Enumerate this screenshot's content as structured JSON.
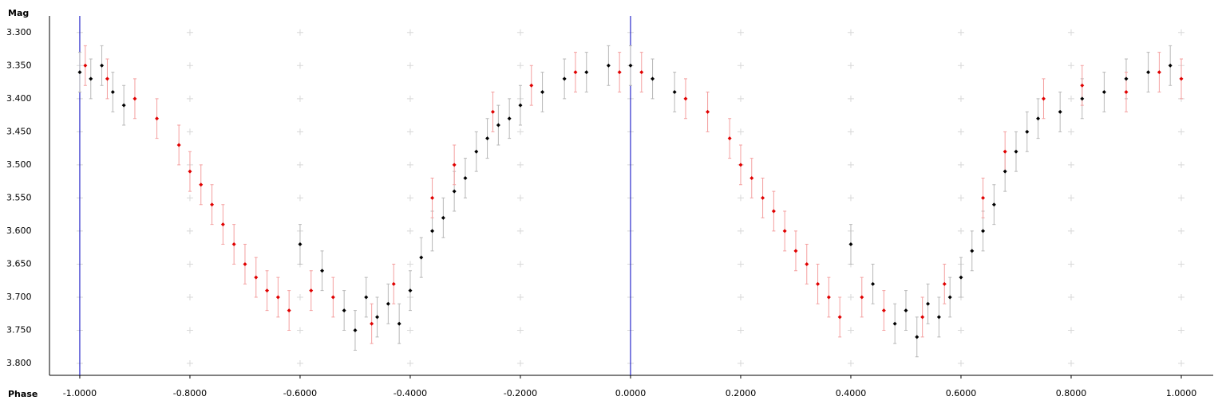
{
  "chart_data": {
    "type": "scatter",
    "y_label": "Mag",
    "x_label": "Phase",
    "xlim": [
      -1.055,
      1.058
    ],
    "ylim": [
      3.275,
      3.818
    ],
    "y_reversed": true,
    "xticks": [
      {
        "value": -1.0,
        "label": "-1.0000"
      },
      {
        "value": -0.8,
        "label": "-0.8000"
      },
      {
        "value": -0.6,
        "label": "-0.6000"
      },
      {
        "value": -0.4,
        "label": "-0.4000"
      },
      {
        "value": -0.2,
        "label": "-0.2000"
      },
      {
        "value": 0,
        "label": "0.0000"
      },
      {
        "value": 0.2,
        "label": "0.2000"
      },
      {
        "value": 0.4,
        "label": "0.4000"
      },
      {
        "value": 0.6,
        "label": "0.6000"
      },
      {
        "value": 0.8,
        "label": "0.8000"
      },
      {
        "value": 1.0,
        "label": "1.0000"
      }
    ],
    "yticks": [
      {
        "value": 3.3,
        "label": "3.300"
      },
      {
        "value": 3.35,
        "label": "3.350"
      },
      {
        "value": 3.4,
        "label": "3.400"
      },
      {
        "value": 3.45,
        "label": "3.450"
      },
      {
        "value": 3.5,
        "label": "3.500"
      },
      {
        "value": 3.55,
        "label": "3.550"
      },
      {
        "value": 3.6,
        "label": "3.600"
      },
      {
        "value": 3.65,
        "label": "3.650"
      },
      {
        "value": 3.7,
        "label": "3.700"
      },
      {
        "value": 3.75,
        "label": "3.750"
      },
      {
        "value": 3.8,
        "label": "3.800"
      }
    ],
    "grid": true,
    "grid_color": "#d8d8d8",
    "vlines": [
      -1.0,
      0
    ],
    "vline_color": "#0000c0",
    "series": [
      {
        "color": "#000000",
        "error_color": "#b8b8b8",
        "error": 0.03,
        "x": [
          -1.0,
          -0.98,
          -0.96,
          -0.94,
          -0.92,
          -0.6,
          -0.56,
          -0.52,
          -0.5,
          -0.48,
          -0.46,
          -0.44,
          -0.42,
          -0.4,
          -0.38,
          -0.36,
          -0.34,
          -0.32,
          -0.3,
          -0.28,
          -0.26,
          -0.24,
          -0.22,
          -0.2,
          -0.16,
          -0.12,
          -0.08,
          -0.04,
          0.0,
          0.04,
          0.08,
          0.4,
          0.44,
          0.48,
          0.5,
          0.52,
          0.54,
          0.56,
          0.58,
          0.6,
          0.62,
          0.64,
          0.66,
          0.68,
          0.7,
          0.72,
          0.74,
          0.78,
          0.82,
          0.86,
          0.9,
          0.94,
          0.98
        ],
        "values": [
          3.36,
          3.37,
          3.35,
          3.39,
          3.41,
          3.62,
          3.66,
          3.72,
          3.75,
          3.7,
          3.73,
          3.71,
          3.74,
          3.69,
          3.64,
          3.6,
          3.58,
          3.54,
          3.52,
          3.48,
          3.46,
          3.44,
          3.43,
          3.41,
          3.39,
          3.37,
          3.36,
          3.35,
          3.35,
          3.37,
          3.39,
          3.62,
          3.68,
          3.74,
          3.72,
          3.76,
          3.71,
          3.73,
          3.7,
          3.67,
          3.63,
          3.6,
          3.56,
          3.51,
          3.48,
          3.45,
          3.43,
          3.42,
          3.4,
          3.39,
          3.37,
          3.36,
          3.35
        ]
      },
      {
        "color": "#e00000",
        "error_color": "#f4a0a0",
        "error": 0.03,
        "x": [
          -0.99,
          -0.95,
          -0.9,
          -0.86,
          -0.82,
          -0.8,
          -0.78,
          -0.76,
          -0.74,
          -0.72,
          -0.7,
          -0.68,
          -0.66,
          -0.64,
          -0.62,
          -0.58,
          -0.54,
          -0.47,
          -0.43,
          -0.36,
          -0.32,
          -0.25,
          -0.18,
          -0.1,
          -0.02,
          0.02,
          0.1,
          0.14,
          0.18,
          0.2,
          0.22,
          0.24,
          0.26,
          0.28,
          0.3,
          0.32,
          0.34,
          0.36,
          0.38,
          0.42,
          0.46,
          0.53,
          0.57,
          0.64,
          0.68,
          0.75,
          0.82,
          0.9,
          0.96,
          1.0
        ],
        "values": [
          3.35,
          3.37,
          3.4,
          3.43,
          3.47,
          3.51,
          3.53,
          3.56,
          3.59,
          3.62,
          3.65,
          3.67,
          3.69,
          3.7,
          3.72,
          3.69,
          3.7,
          3.74,
          3.68,
          3.55,
          3.5,
          3.42,
          3.38,
          3.36,
          3.36,
          3.36,
          3.4,
          3.42,
          3.46,
          3.5,
          3.52,
          3.55,
          3.57,
          3.6,
          3.63,
          3.65,
          3.68,
          3.7,
          3.73,
          3.7,
          3.72,
          3.73,
          3.68,
          3.55,
          3.48,
          3.4,
          3.38,
          3.39,
          3.36,
          3.37
        ]
      }
    ]
  }
}
